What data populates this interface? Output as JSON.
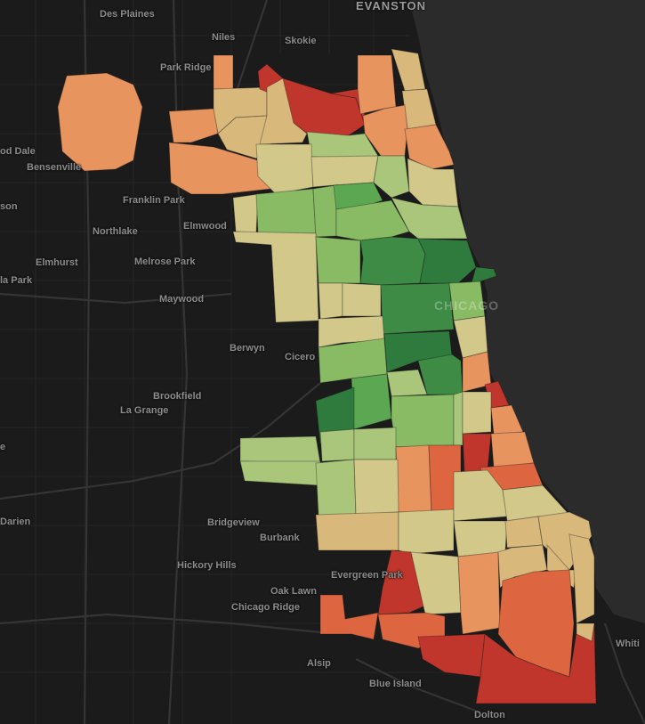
{
  "map": {
    "lake_color": "#2b2b2b",
    "land_color": "#1b1b1b",
    "road_color": "#2e2e2e",
    "color_scale": {
      "red": "#c0362c",
      "orange_red": "#dd6640",
      "orange": "#e8945f",
      "tan": "#d9b87c",
      "khaki": "#d2c88a",
      "light_green": "#a9c67a",
      "green": "#88bb63",
      "mid_green": "#5ca752",
      "dark_green": "#3d8b45",
      "deep_green": "#2e7b3d"
    },
    "place_labels": {
      "evanston": "EVANSTON",
      "des_plaines": "Des Plaines",
      "niles": "Niles",
      "skokie": "Skokie",
      "park_ridge": "Park Ridge",
      "wood_dale": "od Dale",
      "bensenville": "Bensenville",
      "franklin_park": "Franklin Park",
      "northlake": "Northlake",
      "elmwood": "Elmwood",
      "son": "son",
      "elmhurst": "Elmhurst",
      "melrose_park": "Melrose Park",
      "la_park": "la Park",
      "maywood": "Maywood",
      "chicago": "CHICAGO",
      "berwyn": "Berwyn",
      "cicero": "Cicero",
      "brookfield": "Brookfield",
      "la_grange": "La Grange",
      "e": "e",
      "darien": "Darien",
      "bridgeview": "Bridgeview",
      "burbank": "Burbank",
      "hickory_hills": "Hickory Hills",
      "evergreen_park": "Evergreen Park",
      "oak_lawn": "Oak Lawn",
      "chicago_ridge": "Chicago Ridge",
      "alsip": "Alsip",
      "blue_island": "Blue Island",
      "dolton": "Dolton",
      "whiting": "Whiti"
    }
  }
}
